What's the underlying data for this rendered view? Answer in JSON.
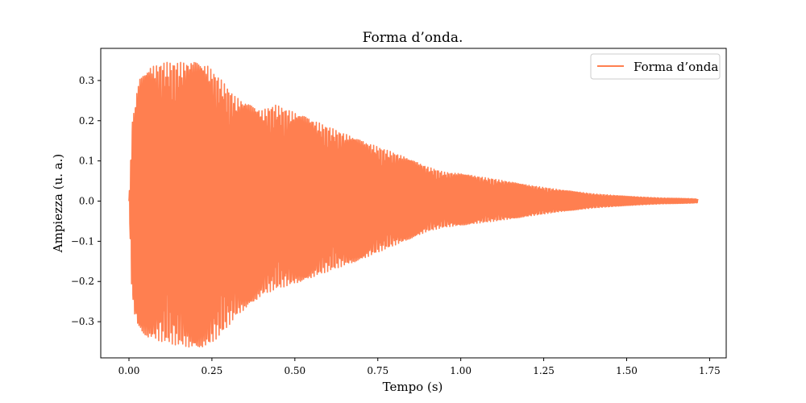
{
  "chart_data": {
    "type": "line",
    "title": "Forma d’onda.",
    "xlabel": "Tempo (s)",
    "ylabel": "Ampiezza (u. a.)",
    "xlim": [
      -0.085,
      1.8
    ],
    "ylim": [
      -0.39,
      0.38
    ],
    "x_ticks": [
      0.0,
      0.25,
      0.5,
      0.75,
      1.0,
      1.25,
      1.5,
      1.75
    ],
    "x_tick_labels": [
      "0.00",
      "0.25",
      "0.50",
      "0.75",
      "1.00",
      "1.25",
      "1.50",
      "1.75"
    ],
    "y_ticks": [
      -0.3,
      -0.2,
      -0.1,
      0.0,
      0.1,
      0.2,
      0.3
    ],
    "y_tick_labels": [
      "−0.3",
      "−0.2",
      "−0.1",
      "0.0",
      "0.1",
      "0.2",
      "0.3"
    ],
    "grid": false,
    "legend_position": "top-right",
    "series": [
      {
        "name": "Forma d’onda",
        "color": "#ff7f50",
        "duration": 1.715,
        "envelope": {
          "t": [
            0.0,
            0.01,
            0.03,
            0.06,
            0.1,
            0.15,
            0.2,
            0.24,
            0.28,
            0.32,
            0.36,
            0.4,
            0.44,
            0.5,
            0.6,
            0.7,
            0.8,
            0.9,
            0.95,
            1.0,
            1.1,
            1.2,
            1.3,
            1.4,
            1.5,
            1.6,
            1.7,
            1.715
          ],
          "upper": [
            0.0,
            0.2,
            0.3,
            0.33,
            0.345,
            0.345,
            0.345,
            0.335,
            0.3,
            0.26,
            0.24,
            0.225,
            0.24,
            0.22,
            0.185,
            0.15,
            0.12,
            0.085,
            0.072,
            0.068,
            0.055,
            0.04,
            0.028,
            0.018,
            0.012,
            0.008,
            0.006,
            0.005
          ],
          "lower": [
            0.0,
            -0.26,
            -0.32,
            -0.34,
            -0.35,
            -0.36,
            -0.365,
            -0.36,
            -0.33,
            -0.29,
            -0.26,
            -0.235,
            -0.22,
            -0.205,
            -0.175,
            -0.145,
            -0.11,
            -0.075,
            -0.065,
            -0.06,
            -0.05,
            -0.038,
            -0.026,
            -0.017,
            -0.011,
            -0.007,
            -0.005,
            -0.004
          ]
        }
      }
    ]
  }
}
